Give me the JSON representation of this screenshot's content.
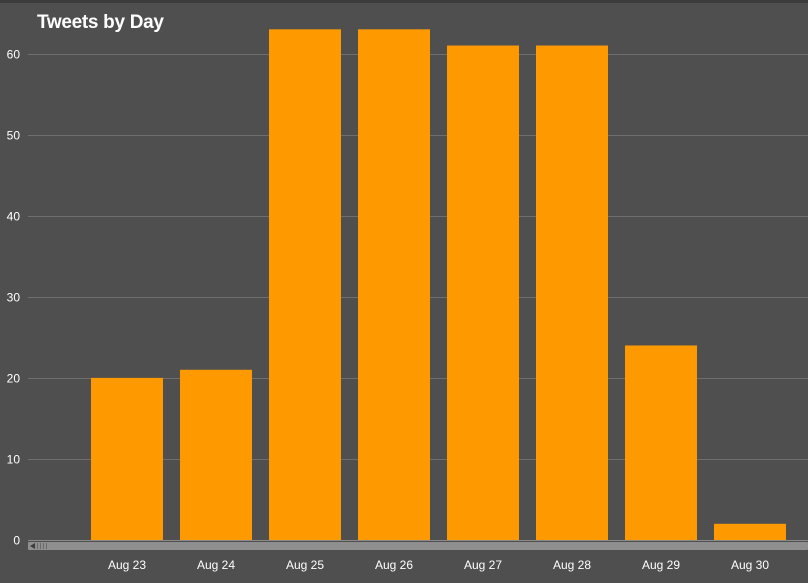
{
  "chart_data": {
    "type": "bar",
    "title": "Tweets by Day",
    "categories": [
      "Aug 23",
      "Aug 24",
      "Aug 25",
      "Aug 26",
      "Aug 27",
      "Aug 28",
      "Aug 29",
      "Aug 30"
    ],
    "values": [
      20,
      21,
      63,
      63,
      61,
      61,
      24,
      2
    ],
    "yticks": [
      0,
      10,
      20,
      30,
      40,
      50,
      60
    ],
    "ylim": [
      0,
      66
    ],
    "grid": true,
    "legend": "none",
    "colors": {
      "bar": "#ff9900",
      "background": "#4f4f4f",
      "gridline": "#6e6e6e",
      "text": "#ffffff"
    }
  }
}
